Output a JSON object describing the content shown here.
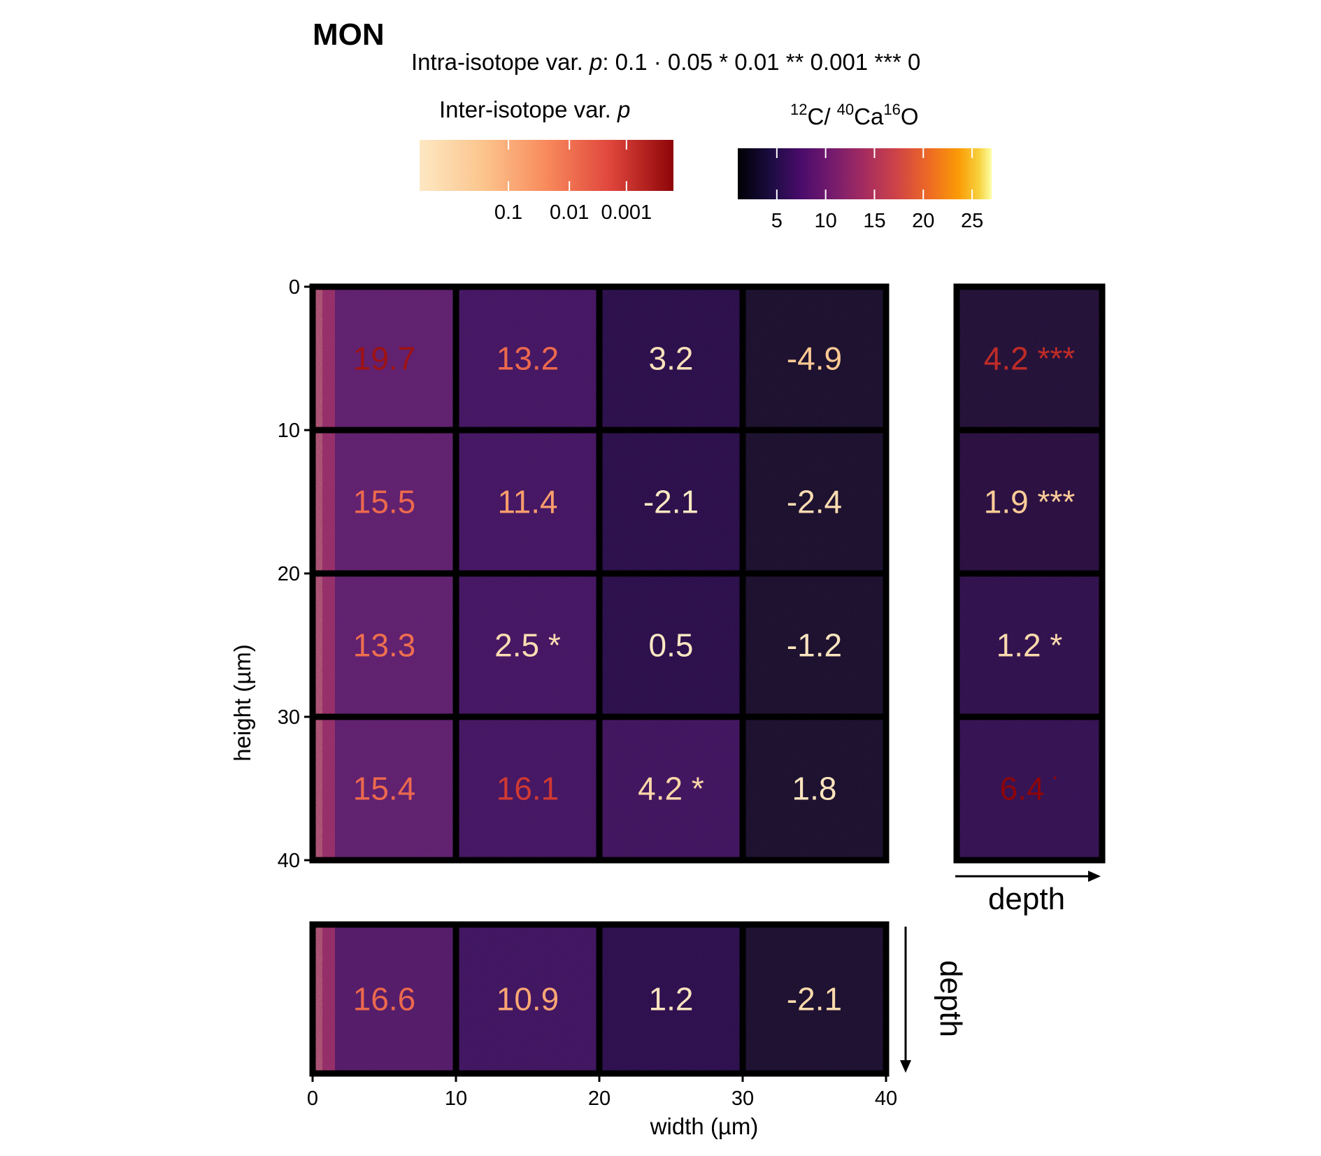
{
  "title": "MON",
  "legend": {
    "intra_prefix": "Intra-isotope var. ",
    "intra_p": "p",
    "intra_scale": [
      {
        "value": "0.1",
        "symbol": "·"
      },
      {
        "value": "0.05",
        "symbol": "*"
      },
      {
        "value": "0.01",
        "symbol": "**"
      },
      {
        "value": "0.001",
        "symbol": "***"
      },
      {
        "value": "0",
        "symbol": ""
      }
    ],
    "inter_title_prefix": "Inter-isotope var. ",
    "inter_title_p": "p",
    "inter_ticks": [
      "0.1",
      "0.01",
      "0.001"
    ],
    "ratio_title": {
      "sup1": "12",
      "el1": "C/ ",
      "sup2": "40",
      "el2": "Ca",
      "sup3": "16",
      "el3": "O"
    },
    "ratio_ticks": [
      5,
      10,
      15,
      20,
      25
    ],
    "ratio_range": [
      1,
      27
    ]
  },
  "chart_data": {
    "type": "heatmap",
    "xlabel": "width (µm)",
    "ylabel": "height (µm)",
    "x_ticks": [
      0,
      10,
      20,
      30,
      40
    ],
    "y_ticks": [
      0,
      10,
      20,
      30,
      40
    ],
    "xlim": [
      0,
      40
    ],
    "ylim": [
      0,
      40
    ],
    "main_grid": [
      [
        {
          "value": "19.7",
          "sig": "",
          "p_level": 0.95
        },
        {
          "value": "13.2",
          "sig": "",
          "p_level": 0.62
        },
        {
          "value": "3.2",
          "sig": "",
          "p_level": 0.04
        },
        {
          "value": "-4.9",
          "sig": "",
          "p_level": 0.22
        }
      ],
      [
        {
          "value": "15.5",
          "sig": "",
          "p_level": 0.62
        },
        {
          "value": "11.4",
          "sig": "",
          "p_level": 0.42
        },
        {
          "value": "-2.1",
          "sig": "",
          "p_level": 0.0
        },
        {
          "value": "-2.4",
          "sig": "",
          "p_level": 0.08
        }
      ],
      [
        {
          "value": "13.3",
          "sig": "",
          "p_level": 0.6
        },
        {
          "value": "2.5",
          "sig": "*",
          "p_level": 0.08
        },
        {
          "value": "0.5",
          "sig": "",
          "p_level": 0.0
        },
        {
          "value": "-1.2",
          "sig": "",
          "p_level": 0.02
        }
      ],
      [
        {
          "value": "15.4",
          "sig": "",
          "p_level": 0.62
        },
        {
          "value": "16.1",
          "sig": "",
          "p_level": 0.8
        },
        {
          "value": "4.2",
          "sig": "*",
          "p_level": 0.12
        },
        {
          "value": "1.8",
          "sig": "",
          "p_level": 0.03
        }
      ]
    ],
    "depth_by_height": [
      {
        "value": "4.2",
        "sig": "***",
        "p_level": 0.85
      },
      {
        "value": "1.9",
        "sig": "***",
        "p_level": 0.2
      },
      {
        "value": "1.2",
        "sig": "*",
        "p_level": 0.1
      },
      {
        "value": "6.4",
        "sig": "·",
        "p_level": 1.0
      }
    ],
    "depth_by_width": [
      {
        "value": "16.6",
        "sig": "",
        "p_level": 0.62
      },
      {
        "value": "10.9",
        "sig": "",
        "p_level": 0.38
      },
      {
        "value": "1.2",
        "sig": "",
        "p_level": 0.02
      },
      {
        "value": "-2.1",
        "sig": "",
        "p_level": 0.1
      }
    ],
    "depth_label": "depth"
  }
}
